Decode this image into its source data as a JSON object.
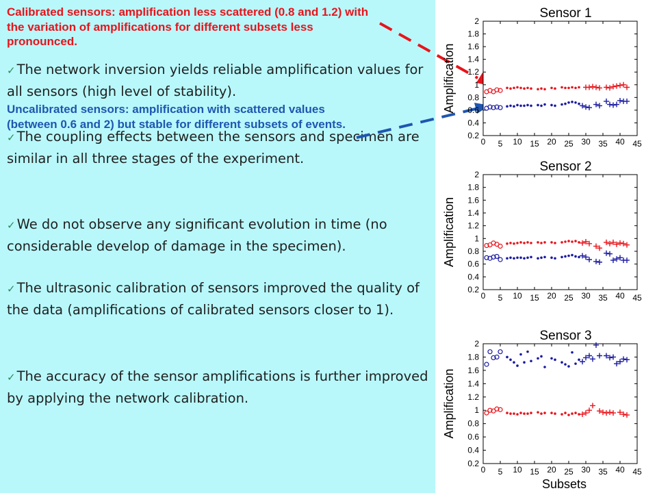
{
  "bullets": [
    "The network inversion yields reliable amplification values for all sensors (high level of stability).",
    "The coupling effects between the sensors and specimen are similar in all three stages of the experiment.",
    "We do not observe any significant evolution in time (no considerable develop of damage in the specimen).",
    "The ultrasonic calibration of sensors improved the quality of the data (amplifications of calibrated sensors closer to 1).",
    "The accuracy of the sensor amplifications is further improved by applying the network calibration."
  ],
  "bullet_marker": "✓",
  "callouts": {
    "calibrated": "Calibrated sensors: amplification less scattered (0.8 and 1.2) with the variation of amplifications for different subsets less pronounced.",
    "uncalibrated": "Uncalibrated  sensors: amplification with scattered values (between 0.6 and 2) but stable for different subsets of events."
  },
  "colors": {
    "background_left": "#b8f8fb",
    "calibrated": "#e8141b",
    "uncalibrated": "#1a1aa0",
    "uncalibrated_text": "#1f56b0"
  },
  "chart_data": [
    {
      "type": "scatter",
      "title": "Sensor 1",
      "ylabel": "Amplification",
      "xlabel": "",
      "xlim": [
        0,
        45
      ],
      "ylim": [
        0.2,
        2
      ],
      "xticks": [
        0,
        5,
        10,
        15,
        20,
        25,
        30,
        35,
        40,
        45
      ],
      "yticks": [
        0.2,
        0.4,
        0.6,
        0.8,
        1,
        1.2,
        1.4,
        1.6,
        1.8,
        2
      ],
      "grid": false,
      "series": [
        {
          "color": "#e8141b",
          "segments": [
            {
              "marker": "o",
              "x": [
                1,
                2,
                3,
                4,
                5
              ],
              "y": [
                0.89,
                0.91,
                0.89,
                0.92,
                0.91
              ]
            },
            {
              "marker": ".",
              "x": [
                7,
                8,
                9,
                10,
                11,
                12,
                13,
                14,
                16,
                17,
                18,
                20,
                21,
                23,
                24,
                25,
                26,
                27,
                28
              ],
              "y": [
                0.95,
                0.94,
                0.95,
                0.96,
                0.95,
                0.94,
                0.95,
                0.94,
                0.93,
                0.94,
                0.93,
                0.95,
                0.94,
                0.96,
                0.95,
                0.95,
                0.96,
                0.95,
                0.96
              ]
            },
            {
              "marker": "+",
              "x": [
                30,
                31,
                32,
                33,
                34,
                36,
                37,
                38,
                39,
                40,
                41,
                42
              ],
              "y": [
                0.96,
                0.96,
                0.97,
                0.96,
                0.95,
                0.96,
                0.95,
                0.97,
                0.98,
                0.99,
                1.0,
                0.96
              ]
            }
          ]
        },
        {
          "color": "#1a1aa0",
          "segments": [
            {
              "marker": "o",
              "x": [
                1,
                2,
                3,
                4,
                5
              ],
              "y": [
                0.63,
                0.65,
                0.64,
                0.65,
                0.64
              ]
            },
            {
              "marker": ".",
              "x": [
                7,
                8,
                9,
                10,
                11,
                12,
                13,
                14,
                16,
                17,
                18,
                20,
                21,
                23,
                24,
                25,
                26,
                27,
                28
              ],
              "y": [
                0.66,
                0.67,
                0.66,
                0.68,
                0.67,
                0.67,
                0.68,
                0.67,
                0.68,
                0.67,
                0.69,
                0.68,
                0.67,
                0.69,
                0.7,
                0.72,
                0.73,
                0.72,
                0.7
              ]
            },
            {
              "marker": "+",
              "x": [
                29,
                30,
                31,
                33,
                34,
                36,
                37,
                38,
                39,
                40,
                41,
                42
              ],
              "y": [
                0.67,
                0.65,
                0.64,
                0.69,
                0.67,
                0.74,
                0.69,
                0.68,
                0.69,
                0.75,
                0.74,
                0.74
              ]
            }
          ]
        }
      ]
    },
    {
      "type": "scatter",
      "title": "Sensor 2",
      "ylabel": "Amplification",
      "xlabel": "",
      "xlim": [
        0,
        45
      ],
      "ylim": [
        0.2,
        2
      ],
      "xticks": [
        0,
        5,
        10,
        15,
        20,
        25,
        30,
        35,
        40,
        45
      ],
      "yticks": [
        0.2,
        0.4,
        0.6,
        0.8,
        1,
        1.2,
        1.4,
        1.6,
        1.8,
        2
      ],
      "grid": false,
      "series": [
        {
          "color": "#e8141b",
          "segments": [
            {
              "marker": "o",
              "x": [
                1,
                2,
                3,
                4,
                5
              ],
              "y": [
                0.89,
                0.9,
                0.93,
                0.91,
                0.88
              ]
            },
            {
              "marker": ".",
              "x": [
                7,
                8,
                9,
                10,
                11,
                12,
                13,
                14,
                16,
                17,
                18,
                20,
                21,
                23,
                24,
                25,
                26,
                27,
                28
              ],
              "y": [
                0.92,
                0.93,
                0.92,
                0.93,
                0.94,
                0.93,
                0.94,
                0.93,
                0.94,
                0.93,
                0.94,
                0.94,
                0.93,
                0.94,
                0.95,
                0.96,
                0.95,
                0.96,
                0.94
              ]
            },
            {
              "marker": "+",
              "x": [
                29,
                30,
                31,
                33,
                34,
                36,
                37,
                38,
                39,
                40,
                41,
                42
              ],
              "y": [
                0.93,
                0.95,
                0.92,
                0.88,
                0.85,
                0.94,
                0.92,
                0.94,
                0.91,
                0.93,
                0.92,
                0.9
              ]
            }
          ]
        },
        {
          "color": "#1a1aa0",
          "segments": [
            {
              "marker": "o",
              "x": [
                1,
                2,
                3,
                4,
                5
              ],
              "y": [
                0.7,
                0.69,
                0.71,
                0.72,
                0.67
              ]
            },
            {
              "marker": ".",
              "x": [
                7,
                8,
                9,
                10,
                11,
                12,
                13,
                14,
                16,
                17,
                18,
                20,
                21,
                23,
                24,
                25,
                26,
                27,
                28
              ],
              "y": [
                0.69,
                0.7,
                0.69,
                0.7,
                0.7,
                0.69,
                0.7,
                0.71,
                0.69,
                0.7,
                0.71,
                0.7,
                0.69,
                0.71,
                0.72,
                0.73,
                0.74,
                0.72,
                0.71
              ]
            },
            {
              "marker": "+",
              "x": [
                29,
                30,
                31,
                33,
                34,
                36,
                37,
                38,
                39,
                40,
                41,
                42
              ],
              "y": [
                0.73,
                0.71,
                0.67,
                0.64,
                0.63,
                0.77,
                0.76,
                0.66,
                0.68,
                0.7,
                0.66,
                0.66
              ]
            }
          ]
        }
      ]
    },
    {
      "type": "scatter",
      "title": "Sensor 3",
      "ylabel": "Amplification",
      "xlabel": "Subsets",
      "xlim": [
        0,
        45
      ],
      "ylim": [
        0.2,
        2
      ],
      "xticks": [
        0,
        5,
        10,
        15,
        20,
        25,
        30,
        35,
        40,
        45
      ],
      "yticks": [
        0.2,
        0.4,
        0.6,
        0.8,
        1,
        1.2,
        1.4,
        1.6,
        1.8,
        2
      ],
      "grid": false,
      "series": [
        {
          "color": "#e8141b",
          "segments": [
            {
              "marker": "o",
              "x": [
                1,
                2,
                3,
                4,
                5
              ],
              "y": [
                0.96,
                1.0,
                0.99,
                1.02,
                1.01
              ]
            },
            {
              "marker": ".",
              "x": [
                7,
                8,
                9,
                10,
                11,
                12,
                13,
                14,
                16,
                17,
                18,
                20,
                21,
                23,
                24,
                25,
                26,
                27,
                28
              ],
              "y": [
                0.96,
                0.95,
                0.95,
                0.94,
                0.96,
                0.95,
                0.95,
                0.96,
                0.97,
                0.95,
                0.96,
                0.96,
                0.95,
                0.94,
                0.96,
                0.93,
                0.95,
                0.96,
                0.94
              ]
            },
            {
              "marker": "+",
              "x": [
                29,
                30,
                31,
                32,
                34,
                35,
                36,
                37,
                38,
                40,
                41,
                42
              ],
              "y": [
                0.94,
                0.96,
                1.0,
                1.07,
                0.99,
                0.97,
                0.96,
                0.97,
                0.96,
                0.97,
                0.94,
                0.93
              ]
            }
          ]
        },
        {
          "color": "#1a1aa0",
          "segments": [
            {
              "marker": "o",
              "x": [
                1,
                2,
                3,
                4,
                5
              ],
              "y": [
                1.69,
                1.88,
                1.79,
                1.8,
                1.88
              ]
            },
            {
              "marker": ".",
              "x": [
                7,
                8,
                9,
                10,
                11,
                12,
                13,
                14,
                16,
                17,
                18,
                20,
                21,
                23,
                24,
                25,
                26,
                27,
                28
              ],
              "y": [
                1.8,
                1.76,
                1.72,
                1.67,
                1.84,
                1.72,
                1.88,
                1.74,
                1.78,
                1.81,
                1.65,
                1.78,
                1.76,
                1.72,
                1.69,
                1.66,
                1.87,
                1.7,
                1.76
              ]
            },
            {
              "marker": "+",
              "x": [
                29,
                30,
                31,
                32,
                33,
                34,
                36,
                37,
                38,
                39,
                40,
                41,
                42
              ],
              "y": [
                1.73,
                1.79,
                1.82,
                1.77,
                1.98,
                1.82,
                1.82,
                1.79,
                1.8,
                1.7,
                1.73,
                1.77,
                1.76
              ]
            }
          ]
        }
      ]
    }
  ]
}
